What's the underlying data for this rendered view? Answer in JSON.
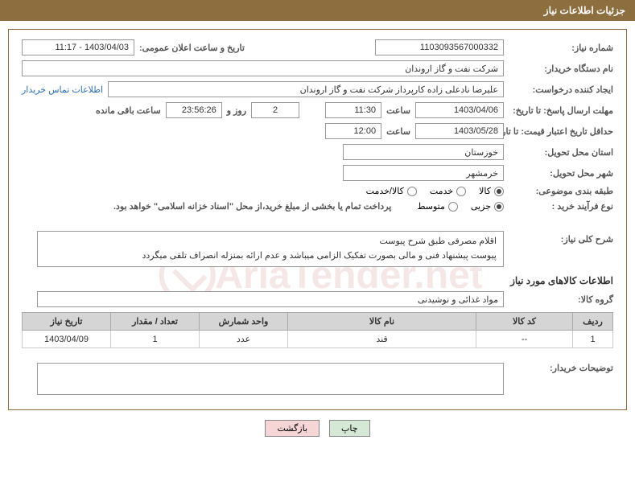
{
  "header": {
    "title": "جزئیات اطلاعات نیاز"
  },
  "fields": {
    "need_number_label": "شماره نیاز:",
    "need_number": "1103093567000332",
    "announce_label": "تاریخ و ساعت اعلان عمومی:",
    "announce_value": "1403/04/03 - 11:17",
    "buyer_org_label": "نام دستگاه خریدار:",
    "buyer_org": "شرکت نفت و گاز اروندان",
    "requester_label": "ایجاد کننده درخواست:",
    "requester": "علیرضا نادعلی زاده کارپرداز شرکت نفت و گاز اروندان",
    "contact_link": "اطلاعات تماس خریدار",
    "deadline_label": "مهلت ارسال پاسخ: تا تاریخ:",
    "deadline_date": "1403/04/06",
    "hour_label": "ساعت",
    "deadline_hour": "11:30",
    "days_count": "2",
    "days_and": "روز و",
    "countdown": "23:56:26",
    "remaining": "ساعت باقی مانده",
    "validity_label": "حداقل تاریخ اعتبار قیمت: تا تاریخ:",
    "validity_date": "1403/05/28",
    "validity_hour": "12:00",
    "province_label": "استان محل تحویل:",
    "province": "خوزستان",
    "city_label": "شهر محل تحویل:",
    "city": "خرمشهر",
    "category_label": "طبقه بندی موضوعی:",
    "cat_goods": "کالا",
    "cat_service": "خدمت",
    "cat_both": "کالا/خدمت",
    "process_label": "نوع فرآیند خرید :",
    "proc_minor": "جزیی",
    "proc_medium": "متوسط",
    "treasury_note": "پرداخت تمام یا بخشی از مبلغ خرید،از محل \"اسناد خزانه اسلامی\" خواهد بود.",
    "desc_label": "شرح کلی نیاز:",
    "desc_line1": "اقلام مصرفی طبق شرح پیوست",
    "desc_line2": "پیوست پیشنهاد فنی و مالی بصورت تفکیک الزامی میباشد و عدم ارائه بمنزله انصراف تلقی میگردد",
    "goods_section": "اطلاعات کالاهای مورد نیاز",
    "group_label": "گروه کالا:",
    "group_value": "مواد غذائی و نوشیدنی",
    "buyer_comment_label": "توضیحات خریدار:"
  },
  "table": {
    "headers": {
      "row": "ردیف",
      "code": "کد کالا",
      "name": "نام کالا",
      "unit": "واحد شمارش",
      "qty": "تعداد / مقدار",
      "date": "تاریخ نیاز"
    },
    "rows": [
      {
        "row": "1",
        "code": "--",
        "name": "قند",
        "unit": "عدد",
        "qty": "1",
        "date": "1403/04/09"
      }
    ]
  },
  "buttons": {
    "print": "چاپ",
    "back": "بازگشت"
  },
  "colors": {
    "header_bg": "#8d6e3f",
    "border": "#8d6e3f",
    "link": "#2a6fb5",
    "th_bg": "#d5d5d5"
  }
}
